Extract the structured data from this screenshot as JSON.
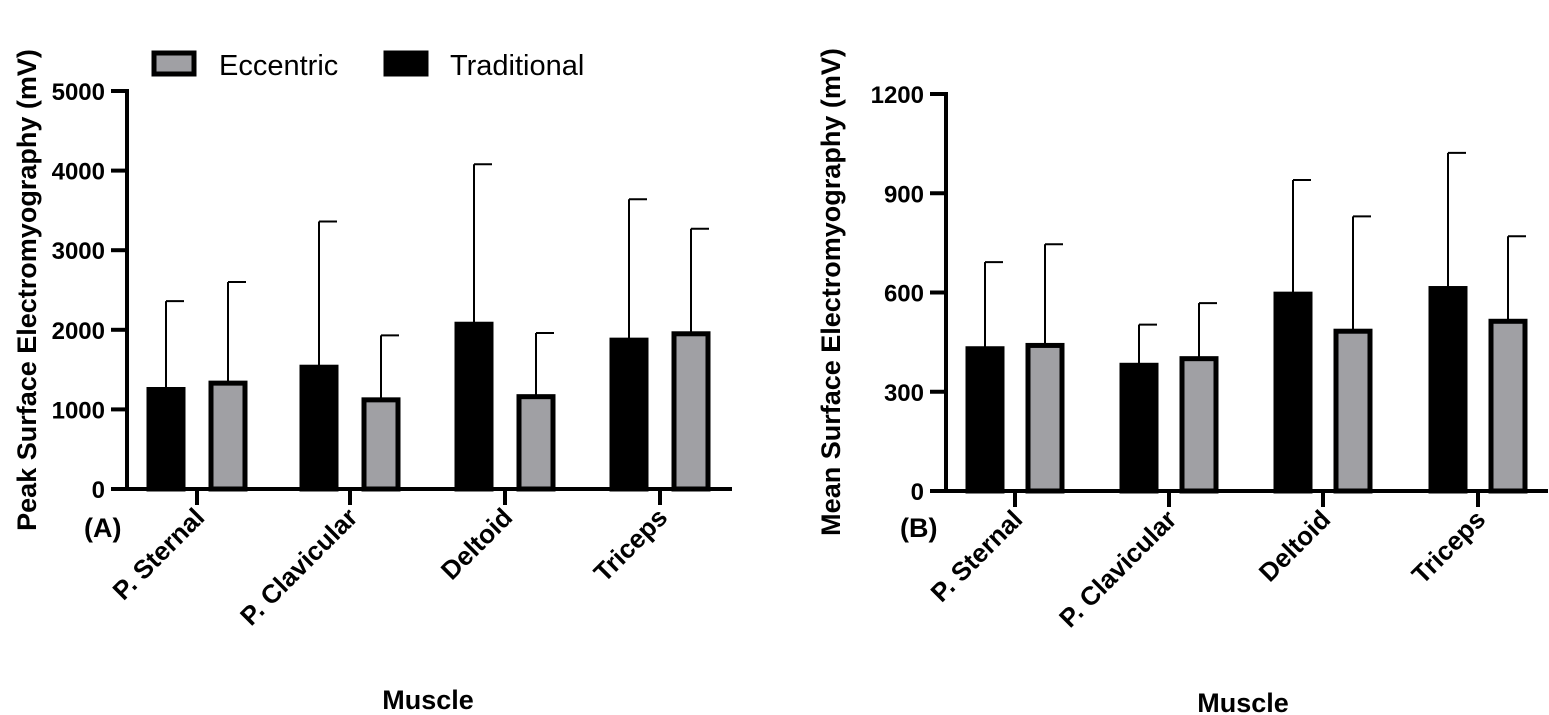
{
  "legend": {
    "eccentric": "Eccentric",
    "traditional": "Traditional"
  },
  "colors": {
    "eccentric": "#a0a0a4",
    "traditional": "#000000",
    "axis": "#000000"
  },
  "chart_data": [
    {
      "type": "bar",
      "panel_label": "(A)",
      "xlabel": "Muscle",
      "ylabel": "Peak Surface Electromyography (mV)",
      "ylim": [
        0,
        5000
      ],
      "yticks": [
        0,
        1000,
        2000,
        3000,
        4000,
        5000
      ],
      "categories": [
        "P. Sternal",
        "P. Clavicular",
        "Deltoid",
        "Triceps"
      ],
      "series": [
        {
          "name": "Traditional",
          "values": [
            1250,
            1530,
            2070,
            1870
          ],
          "errors": [
            1110,
            1830,
            2010,
            1770
          ]
        },
        {
          "name": "Eccentric",
          "values": [
            1330,
            1120,
            1160,
            1950
          ],
          "errors": [
            1270,
            810,
            800,
            1320
          ]
        }
      ]
    },
    {
      "type": "bar",
      "panel_label": "(B)",
      "xlabel": "Muscle",
      "ylabel": "Mean Surface Electromyography (mV)",
      "ylim": [
        0,
        1200
      ],
      "yticks": [
        0,
        300,
        600,
        900,
        1200
      ],
      "categories": [
        "P. Sternal",
        "P. Clavicular",
        "Deltoid",
        "Triceps"
      ],
      "series": [
        {
          "name": "Traditional",
          "values": [
            430,
            380,
            595,
            612
          ],
          "errors": [
            262,
            123,
            345,
            410
          ]
        },
        {
          "name": "Eccentric",
          "values": [
            440,
            400,
            483,
            513
          ],
          "errors": [
            306,
            168,
            347,
            257
          ]
        }
      ]
    }
  ]
}
